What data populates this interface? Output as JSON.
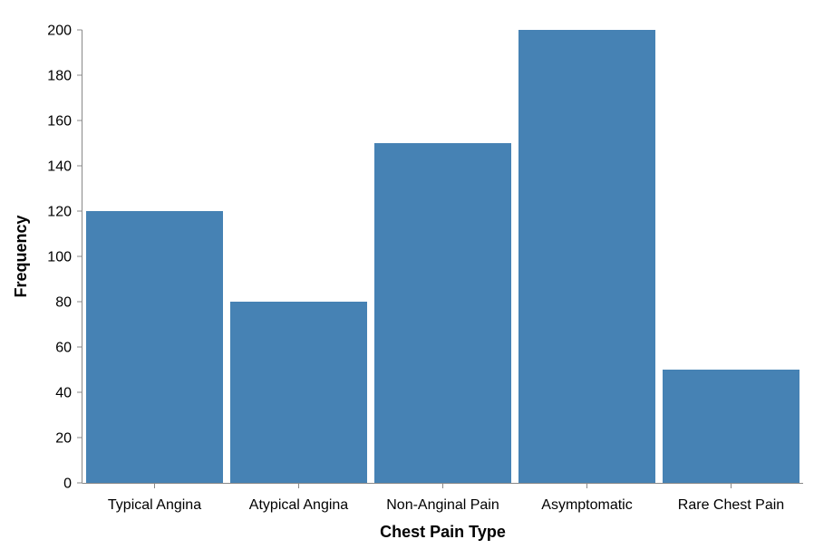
{
  "chart_data": {
    "type": "bar",
    "title": "",
    "xlabel": "Chest Pain Type",
    "ylabel": "Frequency",
    "categories": [
      "Typical Angina",
      "Atypical Angina",
      "Non-Anginal Pain",
      "Asymptomatic",
      "Rare Chest Pain"
    ],
    "values": [
      120,
      80,
      150,
      200,
      50
    ],
    "ylim": [
      0,
      200
    ],
    "yticks": [
      0,
      20,
      40,
      60,
      80,
      100,
      120,
      140,
      160,
      180,
      200
    ],
    "grid": false,
    "legend": "none",
    "bar_color": "#4682b4",
    "axis_color": "#888888"
  }
}
